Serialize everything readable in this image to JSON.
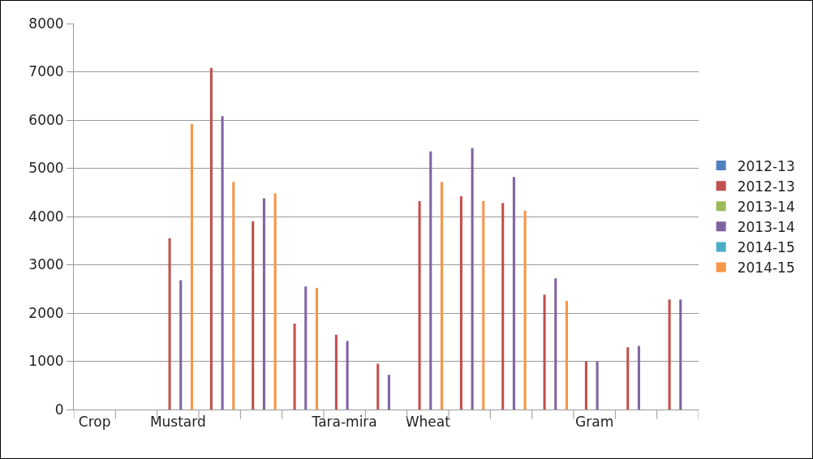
{
  "chart_data": {
    "type": "bar",
    "categories": [
      "Crop",
      null,
      "Mustard",
      null,
      null,
      null,
      "Tara-mira",
      null,
      "Wheat",
      null,
      null,
      null,
      "Gram",
      null,
      null
    ],
    "series": [
      {
        "name": "2012-13",
        "color": "#4f81bd",
        "values": [
          null,
          null,
          null,
          null,
          null,
          null,
          null,
          null,
          null,
          null,
          null,
          null,
          null,
          null,
          null
        ]
      },
      {
        "name": "2012-13",
        "color": "#c0504d",
        "values": [
          null,
          null,
          3550,
          7080,
          3900,
          1780,
          1550,
          950,
          4320,
          4420,
          4280,
          2380,
          1000,
          1290,
          2280
        ]
      },
      {
        "name": "2013-14",
        "color": "#9bbb59",
        "values": [
          null,
          null,
          null,
          null,
          null,
          null,
          null,
          null,
          null,
          null,
          null,
          null,
          null,
          null,
          null
        ]
      },
      {
        "name": "2013-14",
        "color": "#8064a2",
        "values": [
          null,
          null,
          2680,
          6080,
          4380,
          2550,
          1420,
          720,
          5350,
          5420,
          4820,
          2720,
          1000,
          1320,
          2280
        ]
      },
      {
        "name": "2014-15",
        "color": "#4bacc6",
        "values": [
          null,
          null,
          null,
          null,
          null,
          null,
          null,
          null,
          null,
          null,
          null,
          null,
          null,
          null,
          null
        ]
      },
      {
        "name": "2014-15",
        "color": "#f79646",
        "values": [
          null,
          null,
          5920,
          4720,
          4480,
          2520,
          null,
          null,
          4720,
          4320,
          4120,
          2250,
          null,
          null,
          null
        ]
      }
    ],
    "ylim": [
      0,
      8000
    ],
    "yticks": [
      0,
      1000,
      2000,
      3000,
      4000,
      5000,
      6000,
      7000,
      8000
    ],
    "grid": "y",
    "legend": "right"
  }
}
